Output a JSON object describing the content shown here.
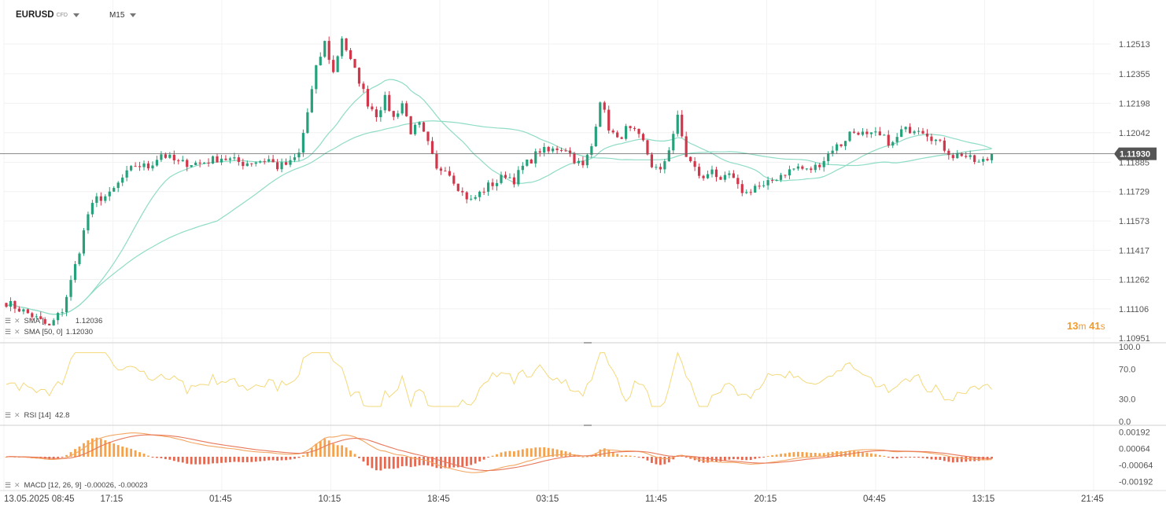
{
  "toolbar": {
    "symbol": "EURUSD",
    "badge": "CFD",
    "timeframe": "M15"
  },
  "countdown": {
    "minutes": "13",
    "minutes_unit": "m",
    "seconds": "41",
    "seconds_unit": "s"
  },
  "colors": {
    "up": "#26a17b",
    "down": "#d2364a",
    "sma": "#8fdcc6",
    "rsi": "#f3d97a",
    "macd_line": "#f2a660",
    "signal_line": "#e8785a",
    "hist_pos": "#f5a24a",
    "hist_neg": "#e8674f",
    "price_tag": "#555555",
    "countdown": "#f29a2e"
  },
  "indicators": {
    "sma1": {
      "text": "SMA [",
      "value": "1.12036"
    },
    "sma2": {
      "text": "SMA [50, 0]",
      "value": "1.12030"
    },
    "rsi": {
      "text": "RSI [14]",
      "value": "42.8"
    },
    "macd": {
      "text": "MACD [12, 26, 9]",
      "value": "-0.00026, -0.00023"
    }
  },
  "chart_data": [
    {
      "type": "candlestick",
      "title": "EURUSD",
      "price_ticks": [
        "1.12513",
        "1.12355",
        "1.12198",
        "1.12042",
        "1.11885",
        "1.11729",
        "1.11573",
        "1.11417",
        "1.11262",
        "1.11106",
        "1.10951"
      ],
      "current_price": "1.11930",
      "ylim": [
        1.10951,
        1.12513
      ],
      "x_ticks": [
        "13.05.2025  08:45",
        "17:15",
        "01:45",
        "10:15",
        "18:45",
        "03:15",
        "11:45",
        "20:15",
        "04:45",
        "13:15",
        "21:45"
      ],
      "close_path": [
        [
          0,
          1.1114
        ],
        [
          6,
          1.1107
        ],
        [
          10,
          1.1101
        ],
        [
          13,
          1.111
        ],
        [
          15,
          1.1125
        ],
        [
          17,
          1.1142
        ],
        [
          19,
          1.1161
        ],
        [
          21,
          1.1169
        ],
        [
          24,
          1.1171
        ],
        [
          27,
          1.118
        ],
        [
          30,
          1.1187
        ],
        [
          33,
          1.1186
        ],
        [
          36,
          1.1193
        ],
        [
          40,
          1.1188
        ],
        [
          45,
          1.1188
        ],
        [
          50,
          1.1191
        ],
        [
          55,
          1.1188
        ],
        [
          58,
          1.1189
        ],
        [
          61,
          1.119
        ],
        [
          63,
          1.1186
        ],
        [
          66,
          1.1188
        ],
        [
          68,
          1.1193
        ],
        [
          70,
          1.1215
        ],
        [
          72,
          1.1238
        ],
        [
          74,
          1.1252
        ],
        [
          76,
          1.1236
        ],
        [
          78,
          1.1255
        ],
        [
          80,
          1.1242
        ],
        [
          82,
          1.1232
        ],
        [
          84,
          1.122
        ],
        [
          86,
          1.1214
        ],
        [
          88,
          1.1222
        ],
        [
          90,
          1.1212
        ],
        [
          92,
          1.122
        ],
        [
          94,
          1.1205
        ],
        [
          96,
          1.1208
        ],
        [
          98,
          1.1198
        ],
        [
          100,
          1.1184
        ],
        [
          102,
          1.1186
        ],
        [
          104,
          1.1179
        ],
        [
          106,
          1.1172
        ],
        [
          108,
          1.1168
        ],
        [
          110,
          1.1172
        ],
        [
          112,
          1.1176
        ],
        [
          114,
          1.1178
        ],
        [
          116,
          1.1182
        ],
        [
          118,
          1.1179
        ],
        [
          120,
          1.1186
        ],
        [
          122,
          1.119
        ],
        [
          124,
          1.1195
        ],
        [
          126,
          1.1194
        ],
        [
          128,
          1.1196
        ],
        [
          130,
          1.1196
        ],
        [
          132,
          1.119
        ],
        [
          134,
          1.1186
        ],
        [
          136,
          1.1197
        ],
        [
          138,
          1.1222
        ],
        [
          140,
          1.1207
        ],
        [
          142,
          1.12
        ],
        [
          144,
          1.1206
        ],
        [
          146,
          1.1204
        ],
        [
          148,
          1.1199
        ],
        [
          150,
          1.1187
        ],
        [
          152,
          1.1183
        ],
        [
          154,
          1.1196
        ],
        [
          156,
          1.1212
        ],
        [
          158,
          1.1192
        ],
        [
          160,
          1.1185
        ],
        [
          162,
          1.1179
        ],
        [
          164,
          1.1186
        ],
        [
          166,
          1.1177
        ],
        [
          168,
          1.1182
        ],
        [
          170,
          1.1175
        ],
        [
          172,
          1.1172
        ],
        [
          174,
          1.1176
        ],
        [
          176,
          1.1175
        ],
        [
          178,
          1.1179
        ],
        [
          180,
          1.1182
        ],
        [
          182,
          1.1184
        ],
        [
          184,
          1.1186
        ],
        [
          186,
          1.1184
        ],
        [
          188,
          1.1186
        ],
        [
          190,
          1.119
        ],
        [
          192,
          1.1196
        ],
        [
          194,
          1.1198
        ],
        [
          196,
          1.1204
        ],
        [
          198,
          1.1205
        ],
        [
          200,
          1.1202
        ],
        [
          202,
          1.1203
        ],
        [
          204,
          1.1201
        ],
        [
          206,
          1.1198
        ],
        [
          208,
          1.1205
        ],
        [
          210,
          1.1206
        ],
        [
          212,
          1.1207
        ],
        [
          214,
          1.1204
        ],
        [
          216,
          1.12
        ],
        [
          218,
          1.1196
        ],
        [
          220,
          1.1192
        ],
        [
          222,
          1.1193
        ],
        [
          224,
          1.119
        ],
        [
          226,
          1.1188
        ],
        [
          228,
          1.119
        ],
        [
          230,
          1.1192
        ]
      ],
      "series": [
        {
          "name": "SMA [",
          "last": 1.12036
        },
        {
          "name": "SMA [50, 0]",
          "last": 1.1203
        }
      ]
    },
    {
      "type": "line",
      "title": "RSI [14]",
      "y_ticks": [
        "100.0",
        "70.0",
        "30.0",
        "0.0"
      ],
      "ylim": [
        0,
        100
      ],
      "last": 42.8
    },
    {
      "type": "bar+line",
      "title": "MACD [12, 26, 9]",
      "y_ticks": [
        "0.00192",
        "0.00064",
        "-0.00064",
        "-0.00192"
      ],
      "ylim": [
        -0.00256,
        0.00256
      ],
      "macd_last": -0.00026,
      "signal_last": -0.00023
    }
  ]
}
